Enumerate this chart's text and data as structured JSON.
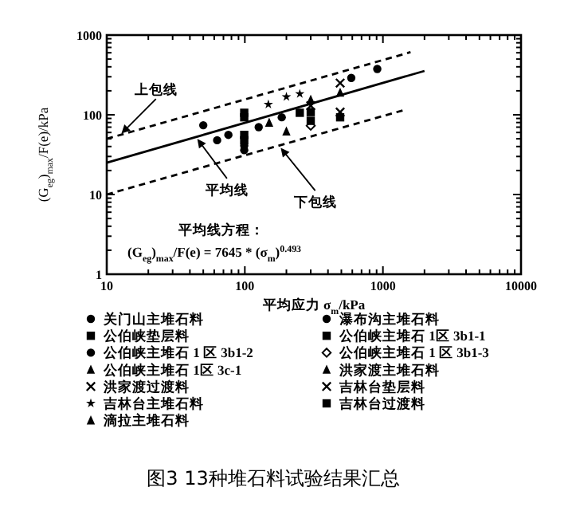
{
  "chart_data": {
    "type": "scatter",
    "title": "图3 13种堆石料试验结果汇总",
    "xlabel": "平均应力 σ$_{m}$/kPa",
    "ylabel": "(G$_{eg}$)$_{max}$/F(e)/kPa",
    "log": "xy",
    "legend": "bottom",
    "xlim": [
      10,
      10000
    ],
    "ylim": [
      1,
      1000
    ],
    "xticks": [
      10,
      100,
      1000,
      10000
    ],
    "yticks": [
      1,
      10,
      100,
      1000
    ],
    "annotations": [
      {
        "text": "上包线",
        "x": 13,
        "y": 60
      },
      {
        "text": "平均线",
        "x": 46,
        "y": 48
      },
      {
        "text": "下包线",
        "x": 185,
        "y": 37
      },
      "平均线方程：",
      "(G$_{eg}$)$_{max}$/F(e) = 7645 * (σ$_{m}$)$^{0.493}$"
    ],
    "series": [
      {
        "name": "关门山主堆石料",
        "color": "#000000",
        "marker": "circle",
        "x": [
          50,
          126,
          185
        ],
        "values": [
          74,
          70,
          93
        ]
      },
      {
        "name": "瀑布沟主堆石料",
        "color": "#000000",
        "marker": "circle",
        "x": [
          63,
          76,
          590,
          910
        ],
        "values": [
          48,
          56,
          290,
          376
        ]
      },
      {
        "name": "公伯峡垫层料",
        "color": "#000000",
        "marker": "square",
        "x": [
          99,
          99
        ],
        "values": [
          106,
          93
        ]
      },
      {
        "name": "公伯峡主堆石 1区 3b1-1",
        "color": "#000000",
        "marker": "square",
        "x": [
          99,
          99,
          300
        ],
        "values": [
          56,
          48,
          84
        ]
      },
      {
        "name": "公伯峡主堆石 1 区 3b1-2",
        "color": "#000000",
        "marker": "circle",
        "x": [
          99,
          99
        ],
        "values": [
          41,
          36
        ]
      },
      {
        "name": "公伯峡主堆石 1 区 3b1-3",
        "color": "#000000",
        "marker": "diamond",
        "x": [
          300
        ],
        "values": [
          73
        ]
      },
      {
        "name": "公伯峡主堆石 1区 3c-1",
        "color": "#000000",
        "marker": "triangle",
        "x": [
          150
        ],
        "values": [
          80
        ]
      },
      {
        "name": "洪家渡主堆石料",
        "color": "#000000",
        "marker": "triangle",
        "x": [
          300,
          490
        ],
        "values": [
          155,
          190
        ]
      },
      {
        "name": "洪家渡过渡料",
        "color": "#000000",
        "marker": "cross",
        "x": [
          490
        ],
        "values": [
          250
        ]
      },
      {
        "name": "吉林台垫层料",
        "color": "#000000",
        "marker": "cross",
        "x": [
          300,
          490
        ],
        "values": [
          130,
          108
        ]
      },
      {
        "name": "吉林台主堆石料",
        "color": "#000000",
        "marker": "star",
        "x": [
          148,
          200,
          250
        ],
        "values": [
          135,
          168,
          183
        ]
      },
      {
        "name": "吉林台过渡料",
        "color": "#000000",
        "marker": "square",
        "x": [
          300,
          490,
          250
        ],
        "values": [
          108,
          93,
          106
        ]
      },
      {
        "name": "滴拉主堆石料",
        "color": "#000000",
        "marker": "triangle",
        "x": [
          200
        ],
        "values": [
          62
        ]
      },
      {
        "type": "line",
        "color": "#000000",
        "line_style": "solid",
        "x": [
          10,
          2000
        ],
        "values": [
          25,
          355
        ]
      },
      {
        "type": "line",
        "color": "#000000",
        "line_style": "dashed",
        "x": [
          10,
          1585
        ],
        "values": [
          50,
          610
        ]
      },
      {
        "type": "line",
        "color": "#000000",
        "line_style": "dashed",
        "x": [
          10,
          1480
        ],
        "values": [
          10,
          117
        ]
      }
    ]
  }
}
